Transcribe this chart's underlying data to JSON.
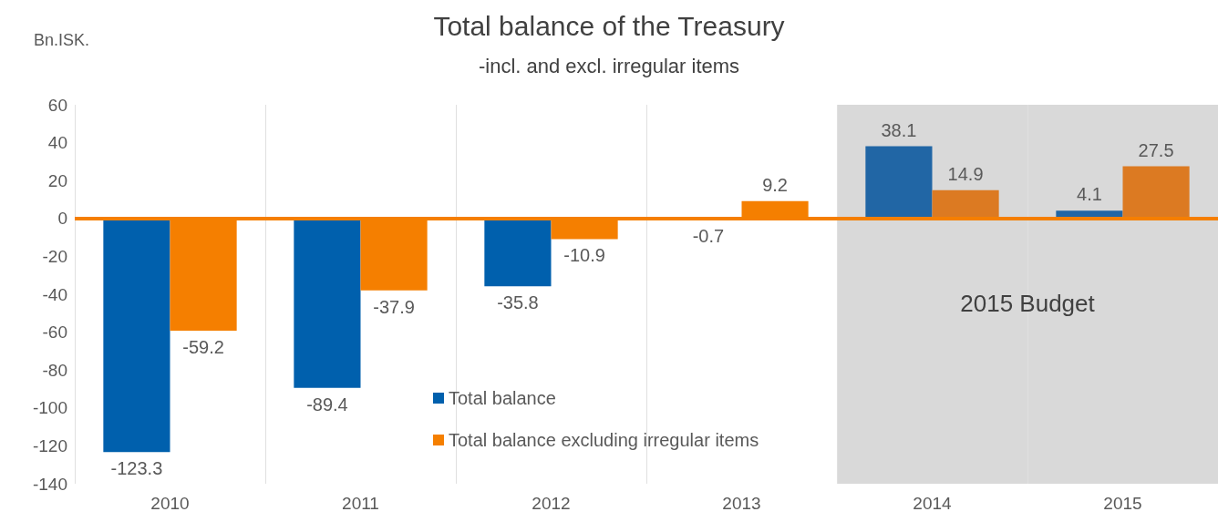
{
  "chart_data": {
    "type": "bar",
    "title": "Total balance of the Treasury",
    "subtitle": "-incl. and excl. irregular items",
    "ylabel": "Bn.ISK.",
    "categories": [
      "2010",
      "2011",
      "2012",
      "2013",
      "2014",
      "2015"
    ],
    "series": [
      {
        "name": "Total balance",
        "color": "#0060ad",
        "colors": [
          "#0060ad",
          "#0060ad",
          "#0060ad",
          "#0060ad",
          "#2166a5",
          "#2166a5"
        ],
        "values": [
          -123.3,
          -89.4,
          -35.8,
          -0.7,
          38.1,
          4.1
        ]
      },
      {
        "name": "Total balance excluding irregular items",
        "color": "#f57f00",
        "colors": [
          "#f57f00",
          "#f57f00",
          "#f57f00",
          "#f57f00",
          "#dc7a22",
          "#dc7a22"
        ],
        "values": [
          -59.2,
          -37.9,
          -10.9,
          9.2,
          14.9,
          27.5
        ]
      }
    ],
    "ylim": [
      -140,
      60
    ],
    "yticks": [
      -140,
      -120,
      -100,
      -80,
      -60,
      -40,
      -20,
      0,
      20,
      40,
      60
    ],
    "grid": "x",
    "legend": "bottom",
    "data_labels": true,
    "ref_lines": [
      {
        "axis": "y",
        "value": 0,
        "color": "#f57f00"
      }
    ],
    "bands": [
      {
        "axis": "x",
        "from": "2014",
        "to": "2015",
        "label": "2015 Budget",
        "color": "#d9d9d9"
      }
    ]
  }
}
